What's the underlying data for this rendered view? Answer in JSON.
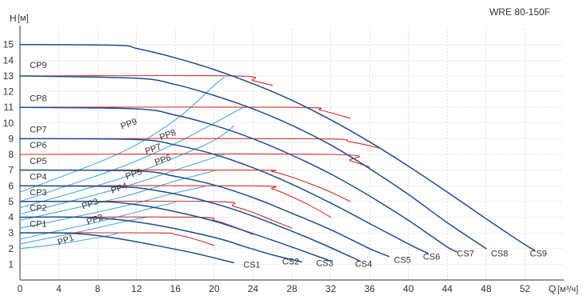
{
  "chart_data": {
    "type": "line",
    "title": "",
    "model_label": "WRE 80-150F",
    "ylabel": "H",
    "yunit": "[м]",
    "xlabel": "Q",
    "xunit": "[м³/ч]",
    "xlim": [
      0,
      56
    ],
    "ylim": [
      0,
      16
    ],
    "xticks": [
      0,
      4,
      8,
      12,
      16,
      20,
      24,
      28,
      32,
      36,
      40,
      44,
      48,
      52
    ],
    "yticks": [
      1,
      2,
      3,
      4,
      5,
      6,
      7,
      8,
      9,
      10,
      11,
      12,
      13,
      14,
      15
    ],
    "grid": true,
    "colors": {
      "cs": "#1f4e8c",
      "cp": "#d12f2f",
      "pp": "#4aa8d8",
      "grid": "#c8c8c8",
      "axis": "#333333"
    },
    "cs_series": [
      {
        "name": "CS1",
        "points": [
          [
            0,
            3.0
          ],
          [
            4,
            3.0
          ],
          [
            7,
            2.9
          ],
          [
            10,
            2.65
          ],
          [
            14,
            2.2
          ],
          [
            18,
            1.7
          ],
          [
            22,
            1.1
          ]
        ]
      },
      {
        "name": "CS2",
        "points": [
          [
            0,
            4.0
          ],
          [
            6,
            4.0
          ],
          [
            10,
            3.85
          ],
          [
            14,
            3.5
          ],
          [
            18,
            3.0
          ],
          [
            21,
            2.55
          ],
          [
            23,
            2.15
          ],
          [
            26,
            1.6
          ],
          [
            29,
            1.15
          ]
        ]
      },
      {
        "name": "CS3",
        "points": [
          [
            0,
            5.0
          ],
          [
            8,
            5.0
          ],
          [
            12,
            4.8
          ],
          [
            16,
            4.35
          ],
          [
            20,
            3.75
          ],
          [
            24,
            2.95
          ],
          [
            28,
            2.1
          ],
          [
            32,
            1.2
          ]
        ]
      },
      {
        "name": "CS4",
        "points": [
          [
            0,
            6.0
          ],
          [
            10,
            5.95
          ],
          [
            14,
            5.7
          ],
          [
            18,
            5.2
          ],
          [
            22,
            4.5
          ],
          [
            26,
            3.6
          ],
          [
            30,
            2.6
          ],
          [
            34,
            1.5
          ],
          [
            35,
            1.2
          ]
        ]
      },
      {
        "name": "CS5",
        "points": [
          [
            0,
            7.0
          ],
          [
            12,
            6.95
          ],
          [
            16,
            6.6
          ],
          [
            20,
            6.05
          ],
          [
            24,
            5.25
          ],
          [
            28,
            4.25
          ],
          [
            32,
            3.2
          ],
          [
            36,
            2.0
          ],
          [
            38,
            1.5
          ]
        ]
      },
      {
        "name": "CS6",
        "points": [
          [
            0,
            9.0
          ],
          [
            12,
            8.95
          ],
          [
            16,
            8.6
          ],
          [
            20,
            8.0
          ],
          [
            24,
            7.15
          ],
          [
            28,
            6.1
          ],
          [
            32,
            4.9
          ],
          [
            36,
            3.6
          ],
          [
            40,
            2.3
          ],
          [
            42,
            1.7
          ]
        ]
      },
      {
        "name": "CS7",
        "points": [
          [
            0,
            11.0
          ],
          [
            12,
            10.9
          ],
          [
            16,
            10.5
          ],
          [
            20,
            9.85
          ],
          [
            24,
            9.0
          ],
          [
            28,
            7.95
          ],
          [
            32,
            6.75
          ],
          [
            36,
            5.35
          ],
          [
            40,
            3.8
          ],
          [
            44,
            2.1
          ],
          [
            45,
            1.8
          ]
        ]
      },
      {
        "name": "CS8",
        "points": [
          [
            0,
            13.0
          ],
          [
            12,
            12.85
          ],
          [
            16,
            12.45
          ],
          [
            20,
            11.75
          ],
          [
            24,
            10.9
          ],
          [
            28,
            9.85
          ],
          [
            32,
            8.6
          ],
          [
            36,
            7.1
          ],
          [
            40,
            5.45
          ],
          [
            44,
            3.65
          ],
          [
            48,
            2.0
          ]
        ]
      },
      {
        "name": "CS9",
        "points": [
          [
            0,
            15.0
          ],
          [
            10,
            14.95
          ],
          [
            12,
            14.75
          ],
          [
            16,
            14.15
          ],
          [
            20,
            13.4
          ],
          [
            24,
            12.5
          ],
          [
            28,
            11.45
          ],
          [
            32,
            10.2
          ],
          [
            36,
            8.8
          ],
          [
            40,
            7.25
          ],
          [
            44,
            5.6
          ],
          [
            48,
            3.9
          ],
          [
            52,
            2.25
          ],
          [
            53,
            1.9
          ]
        ]
      }
    ],
    "cp_series": [
      {
        "name": "CP1",
        "points": [
          [
            0,
            3.0
          ],
          [
            14,
            3.0
          ],
          [
            16,
            2.9
          ],
          [
            18,
            2.6
          ],
          [
            20,
            2.2
          ]
        ]
      },
      {
        "name": "CP2",
        "points": [
          [
            0,
            4.0
          ],
          [
            18,
            4.0
          ],
          [
            20,
            3.8
          ],
          [
            22,
            3.4
          ],
          [
            24,
            2.9
          ]
        ]
      },
      {
        "name": "CP3",
        "points": [
          [
            0,
            5.0
          ],
          [
            20,
            5.0
          ],
          [
            22,
            4.7
          ],
          [
            24,
            4.3
          ],
          [
            26,
            3.8
          ],
          [
            28,
            3.3
          ]
        ]
      },
      {
        "name": "CP4",
        "points": [
          [
            0,
            6.0
          ],
          [
            24,
            6.0
          ],
          [
            26,
            5.8
          ],
          [
            28,
            5.3
          ],
          [
            30,
            4.7
          ],
          [
            32,
            4.0
          ]
        ]
      },
      {
        "name": "CP5",
        "points": [
          [
            0,
            7.0
          ],
          [
            24,
            7.0
          ],
          [
            26,
            6.9
          ],
          [
            28,
            6.55
          ],
          [
            30,
            6.1
          ],
          [
            32,
            5.6
          ],
          [
            34,
            5.0
          ]
        ]
      },
      {
        "name": "CP6",
        "points": [
          [
            0,
            8.0
          ],
          [
            32,
            8.0
          ],
          [
            34,
            7.6
          ],
          [
            36,
            7.2
          ]
        ]
      },
      {
        "name": "CP7",
        "points": [
          [
            0,
            9.0
          ],
          [
            30,
            9.0
          ],
          [
            34,
            8.8
          ],
          [
            37,
            8.4
          ]
        ]
      },
      {
        "name": "CP8",
        "points": [
          [
            0,
            11.0
          ],
          [
            28,
            11.0
          ],
          [
            31,
            10.8
          ],
          [
            34,
            10.3
          ]
        ]
      },
      {
        "name": "CP9",
        "points": [
          [
            0,
            13.0
          ],
          [
            22,
            13.0
          ],
          [
            24,
            12.7
          ],
          [
            26,
            12.4
          ]
        ]
      }
    ],
    "pp_series": [
      {
        "name": "PP1",
        "points": [
          [
            0,
            2.0
          ],
          [
            4,
            2.3
          ],
          [
            8,
            2.7
          ],
          [
            10,
            2.95
          ]
        ]
      },
      {
        "name": "PP2",
        "points": [
          [
            0,
            2.3
          ],
          [
            6,
            3.05
          ],
          [
            11,
            3.75
          ],
          [
            13,
            4.0
          ]
        ]
      },
      {
        "name": "PP3",
        "points": [
          [
            0,
            2.6
          ],
          [
            8,
            3.7
          ],
          [
            14,
            4.65
          ],
          [
            16,
            4.95
          ]
        ]
      },
      {
        "name": "PP4",
        "points": [
          [
            0,
            3.3
          ],
          [
            10,
            4.6
          ],
          [
            16,
            5.55
          ],
          [
            19,
            5.95
          ]
        ]
      },
      {
        "name": "PP5",
        "points": [
          [
            0,
            3.8
          ],
          [
            10,
            5.2
          ],
          [
            16,
            6.3
          ],
          [
            20,
            6.95
          ]
        ]
      },
      {
        "name": "PP6",
        "points": [
          [
            0,
            4.2
          ],
          [
            10,
            5.8
          ],
          [
            16,
            7.0
          ],
          [
            21,
            8.0
          ]
        ]
      },
      {
        "name": "PP7",
        "points": [
          [
            0,
            4.6
          ],
          [
            10,
            6.4
          ],
          [
            16,
            7.8
          ],
          [
            20,
            8.9
          ],
          [
            22,
            9.8
          ]
        ]
      },
      {
        "name": "PP8",
        "points": [
          [
            0,
            5.0
          ],
          [
            10,
            7.1
          ],
          [
            16,
            8.7
          ],
          [
            20,
            10.0
          ],
          [
            23,
            11.0
          ]
        ]
      },
      {
        "name": "PP9",
        "points": [
          [
            0,
            5.6
          ],
          [
            10,
            8.0
          ],
          [
            16,
            10.2
          ],
          [
            20,
            12.4
          ],
          [
            21,
            12.9
          ]
        ]
      }
    ],
    "labels": [
      {
        "text": "CS1",
        "x": 23.0,
        "y": 0.8
      },
      {
        "text": "CS2",
        "x": 27.0,
        "y": 1.0
      },
      {
        "text": "CS3",
        "x": 30.5,
        "y": 0.9
      },
      {
        "text": "CS4",
        "x": 34.5,
        "y": 0.85
      },
      {
        "text": "CS5",
        "x": 38.5,
        "y": 1.1
      },
      {
        "text": "CS6",
        "x": 41.5,
        "y": 1.3
      },
      {
        "text": "CS7",
        "x": 45.0,
        "y": 1.5
      },
      {
        "text": "CS8",
        "x": 48.5,
        "y": 1.5
      },
      {
        "text": "CS9",
        "x": 52.5,
        "y": 1.5
      },
      {
        "text": "CP9",
        "x": 1.0,
        "y": 13.5
      },
      {
        "text": "CP8",
        "x": 1.0,
        "y": 11.4
      },
      {
        "text": "CP7",
        "x": 1.0,
        "y": 9.4
      },
      {
        "text": "CP6",
        "x": 1.0,
        "y": 8.4
      },
      {
        "text": "CP5",
        "x": 1.0,
        "y": 7.4
      },
      {
        "text": "CP4",
        "x": 1.0,
        "y": 6.4
      },
      {
        "text": "CP3",
        "x": 1.0,
        "y": 5.4
      },
      {
        "text": "CP2",
        "x": 1.0,
        "y": 4.4
      },
      {
        "text": "CP1",
        "x": 1.0,
        "y": 3.4
      },
      {
        "text": "PP9",
        "x": 10.5,
        "y": 9.6
      },
      {
        "text": "PP8",
        "x": 14.5,
        "y": 8.9
      },
      {
        "text": "PP7",
        "x": 13.0,
        "y": 8.0
      },
      {
        "text": "PP6",
        "x": 14.0,
        "y": 7.3
      },
      {
        "text": "PP5",
        "x": 11.0,
        "y": 6.4
      },
      {
        "text": "PP4",
        "x": 9.5,
        "y": 5.5
      },
      {
        "text": "PP3",
        "x": 6.5,
        "y": 4.5
      },
      {
        "text": "PP2",
        "x": 7.0,
        "y": 3.5
      },
      {
        "text": "PP1",
        "x": 4.0,
        "y": 2.2
      }
    ]
  }
}
